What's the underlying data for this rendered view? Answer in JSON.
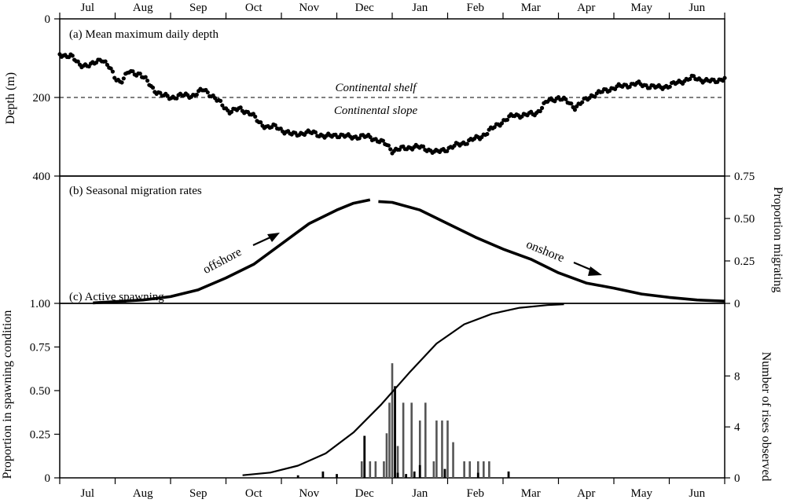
{
  "months": [
    "Jul",
    "Aug",
    "Sep",
    "Oct",
    "Nov",
    "Dec",
    "Jan",
    "Feb",
    "Mar",
    "Apr",
    "May",
    "Jun"
  ],
  "chart_data": [
    {
      "type": "scatter",
      "title": "(a)  Mean maximum daily depth",
      "ylabel": "Depth (m)",
      "ylim": [
        400,
        0
      ],
      "yticks": [
        "0",
        "200",
        "400"
      ],
      "x_unit": "month",
      "xlim": [
        0,
        12
      ],
      "reference_line": {
        "y": 200,
        "label_above": "Continental shelf",
        "label_below": "Continental slope"
      },
      "anchors": [
        [
          0.0,
          90
        ],
        [
          0.2,
          95
        ],
        [
          0.35,
          115
        ],
        [
          0.55,
          120
        ],
        [
          0.75,
          100
        ],
        [
          0.9,
          125
        ],
        [
          1.0,
          150
        ],
        [
          1.1,
          160
        ],
        [
          1.25,
          135
        ],
        [
          1.45,
          140
        ],
        [
          1.55,
          155
        ],
        [
          1.7,
          180
        ],
        [
          1.85,
          195
        ],
        [
          2.0,
          200
        ],
        [
          2.2,
          195
        ],
        [
          2.4,
          195
        ],
        [
          2.6,
          180
        ],
        [
          2.75,
          195
        ],
        [
          2.9,
          215
        ],
        [
          3.05,
          235
        ],
        [
          3.25,
          230
        ],
        [
          3.45,
          240
        ],
        [
          3.6,
          265
        ],
        [
          3.75,
          275
        ],
        [
          3.9,
          275
        ],
        [
          4.05,
          285
        ],
        [
          4.2,
          295
        ],
        [
          4.4,
          290
        ],
        [
          4.6,
          290
        ],
        [
          4.8,
          300
        ],
        [
          5.0,
          295
        ],
        [
          5.2,
          300
        ],
        [
          5.4,
          300
        ],
        [
          5.6,
          300
        ],
        [
          5.75,
          310
        ],
        [
          5.9,
          320
        ],
        [
          6.0,
          335
        ],
        [
          6.2,
          330
        ],
        [
          6.4,
          325
        ],
        [
          6.6,
          330
        ],
        [
          6.8,
          340
        ],
        [
          7.0,
          330
        ],
        [
          7.2,
          320
        ],
        [
          7.4,
          310
        ],
        [
          7.6,
          300
        ],
        [
          7.8,
          280
        ],
        [
          8.0,
          260
        ],
        [
          8.2,
          245
        ],
        [
          8.4,
          245
        ],
        [
          8.6,
          240
        ],
        [
          8.8,
          210
        ],
        [
          9.0,
          200
        ],
        [
          9.15,
          210
        ],
        [
          9.3,
          225
        ],
        [
          9.45,
          210
        ],
        [
          9.6,
          195
        ],
        [
          9.8,
          185
        ],
        [
          10.0,
          175
        ],
        [
          10.2,
          170
        ],
        [
          10.4,
          165
        ],
        [
          10.6,
          170
        ],
        [
          10.8,
          175
        ],
        [
          11.0,
          170
        ],
        [
          11.2,
          160
        ],
        [
          11.4,
          150
        ],
        [
          11.6,
          155
        ],
        [
          11.8,
          160
        ],
        [
          12.0,
          150
        ]
      ]
    },
    {
      "type": "line",
      "title": "(b)  Seasonal migration rates",
      "ylabel": "Proportion migrating",
      "ylim": [
        0,
        0.75
      ],
      "yticks": [
        "0",
        "0.25",
        "0.50",
        "0.75"
      ],
      "xlim": [
        0,
        12
      ],
      "series": [
        {
          "points": [
            [
              0.6,
              0.003
            ],
            [
              1.5,
              0.02
            ],
            [
              2.0,
              0.04
            ],
            [
              2.5,
              0.08
            ],
            [
              3.0,
              0.15
            ],
            [
              3.5,
              0.23
            ],
            [
              4.0,
              0.35
            ],
            [
              4.5,
              0.47
            ],
            [
              5.0,
              0.55
            ],
            [
              5.3,
              0.59
            ],
            [
              5.6,
              0.61
            ]
          ]
        },
        {
          "points": [
            [
              5.75,
              0.6
            ],
            [
              6.0,
              0.595
            ],
            [
              6.5,
              0.55
            ],
            [
              7.0,
              0.47
            ],
            [
              7.5,
              0.39
            ],
            [
              8.0,
              0.32
            ],
            [
              8.5,
              0.26
            ],
            [
              9.0,
              0.18
            ],
            [
              9.5,
              0.12
            ],
            [
              10.0,
              0.09
            ],
            [
              10.5,
              0.055
            ],
            [
              11.0,
              0.035
            ],
            [
              11.5,
              0.02
            ],
            [
              12.0,
              0.013
            ]
          ]
        }
      ],
      "annotations": [
        "offshore",
        "onshore"
      ]
    },
    {
      "type": "bar",
      "title": "(c)  Active spawning",
      "ylabel_left": "Proportion in spawning condition",
      "ylim_left": [
        0,
        1.0
      ],
      "yticks_left": [
        "0",
        "0.25",
        "0.50",
        "0.75",
        "1.00"
      ],
      "ylabel_right": "Number of rises observed",
      "ylim_right": [
        0,
        13.7
      ],
      "yticks_right": [
        "0",
        "4",
        "8"
      ],
      "xlim": [
        0,
        12
      ],
      "curve": [
        [
          3.3,
          0.015
        ],
        [
          3.8,
          0.03
        ],
        [
          4.3,
          0.07
        ],
        [
          4.8,
          0.14
        ],
        [
          5.3,
          0.26
        ],
        [
          5.8,
          0.42
        ],
        [
          6.3,
          0.6
        ],
        [
          6.8,
          0.77
        ],
        [
          7.3,
          0.88
        ],
        [
          7.8,
          0.94
        ],
        [
          8.3,
          0.975
        ],
        [
          8.8,
          0.99
        ],
        [
          9.1,
          0.995
        ]
      ],
      "series": [
        {
          "name": "gray",
          "bars": [
            [
              5.45,
              1.3
            ],
            [
              5.6,
              1.3
            ],
            [
              5.7,
              1.3
            ],
            [
              5.85,
              1.3
            ],
            [
              5.9,
              3.5
            ],
            [
              5.95,
              5.9
            ],
            [
              6.0,
              9.0
            ],
            [
              6.1,
              2.5
            ],
            [
              6.2,
              5.9
            ],
            [
              6.35,
              5.9
            ],
            [
              6.5,
              4.5
            ],
            [
              6.6,
              5.9
            ],
            [
              6.75,
              1.3
            ],
            [
              6.8,
              4.5
            ],
            [
              6.9,
              4.5
            ],
            [
              7.0,
              4.5
            ],
            [
              7.1,
              2.8
            ],
            [
              7.3,
              1.3
            ],
            [
              7.4,
              1.3
            ],
            [
              7.55,
              1.3
            ],
            [
              7.65,
              1.3
            ],
            [
              7.75,
              1.3
            ]
          ]
        },
        {
          "name": "black",
          "bars": [
            [
              4.3,
              0.2
            ],
            [
              4.75,
              0.5
            ],
            [
              5.0,
              0.3
            ],
            [
              5.5,
              3.3
            ],
            [
              6.05,
              7.2
            ],
            [
              6.1,
              0.4
            ],
            [
              6.25,
              0.3
            ],
            [
              6.4,
              0.5
            ],
            [
              6.5,
              1.0
            ],
            [
              6.95,
              0.7
            ],
            [
              7.55,
              0.4
            ],
            [
              8.1,
              0.5
            ]
          ]
        }
      ]
    }
  ]
}
